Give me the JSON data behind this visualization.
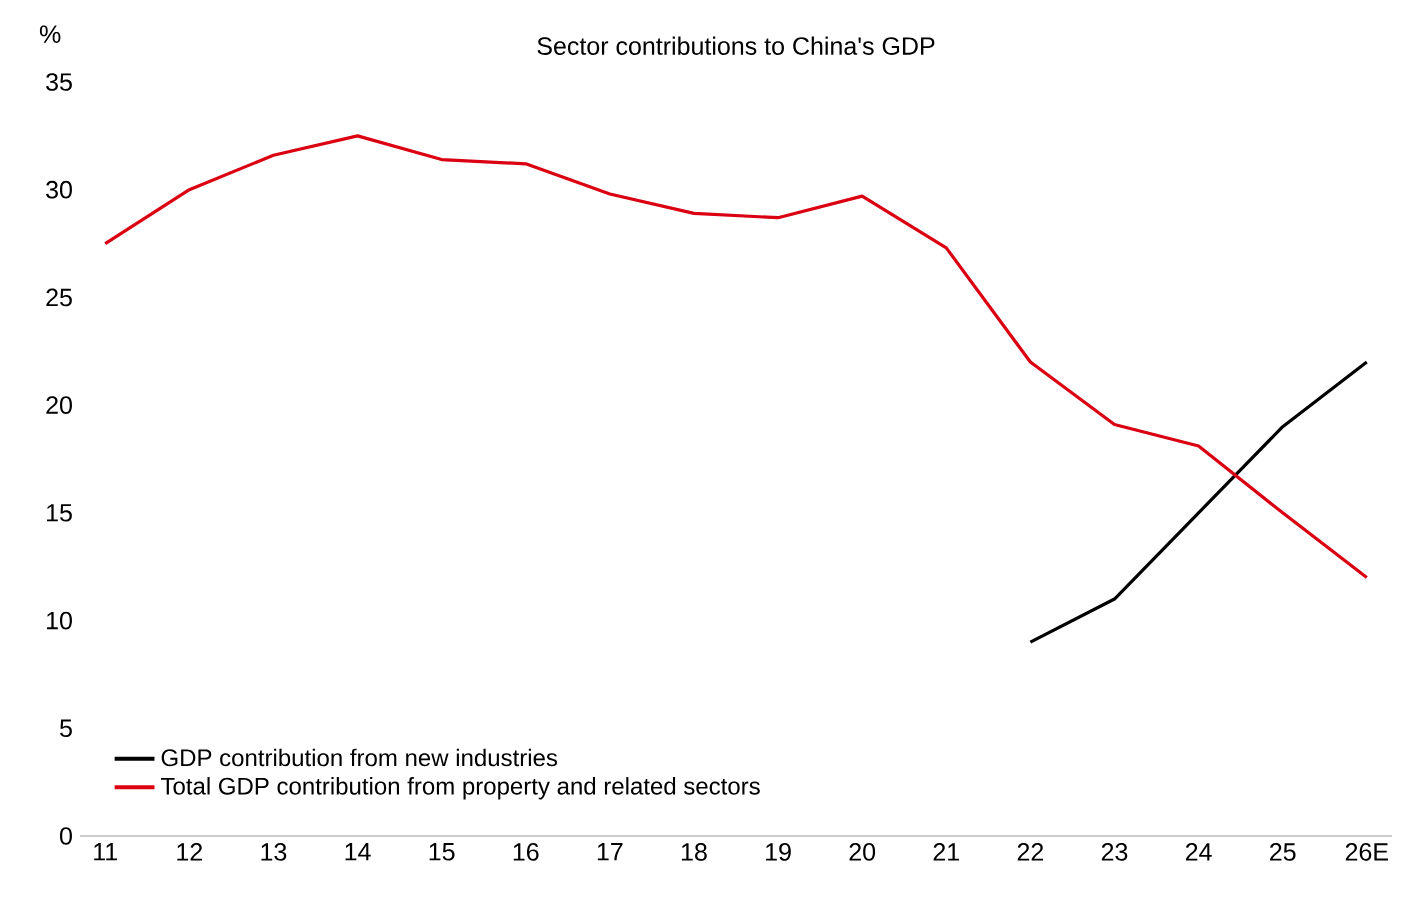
{
  "chart_data": {
    "type": "line",
    "title": "Sector contributions to China's GDP",
    "ylabel": "%",
    "categories": [
      "11",
      "12",
      "13",
      "14",
      "15",
      "16",
      "17",
      "18",
      "19",
      "20",
      "21",
      "22",
      "23",
      "24",
      "25",
      "26E"
    ],
    "series": [
      {
        "name": "GDP contribution from new industries",
        "color": "#000000",
        "values": [
          null,
          null,
          null,
          null,
          null,
          null,
          null,
          null,
          null,
          null,
          null,
          9,
          11,
          15,
          19,
          22
        ]
      },
      {
        "name": "Total GDP contribution from property and related sectors",
        "color": "#db0011",
        "values": [
          27.5,
          30,
          31.6,
          32.5,
          31.4,
          31.2,
          29.8,
          28.9,
          28.7,
          29.7,
          27.3,
          22,
          19.1,
          18.1,
          15,
          12
        ]
      }
    ],
    "ylim": [
      0,
      35
    ],
    "yticks": [
      0,
      5,
      10,
      15,
      20,
      25,
      30,
      35
    ],
    "grid": false,
    "legend": "bottom left",
    "marker": "none",
    "line_style": "solid"
  }
}
